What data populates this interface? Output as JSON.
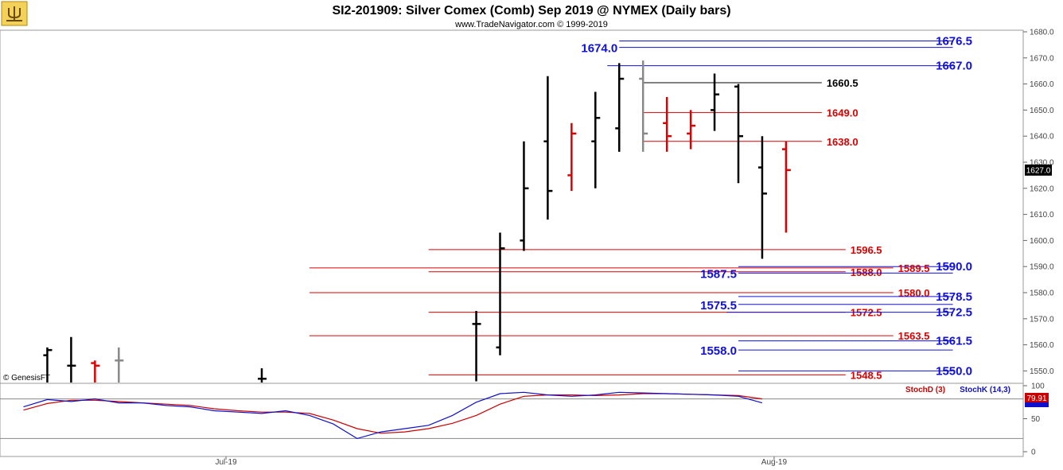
{
  "header": {
    "title": "SI2-201909:  Silver Comex (Comb) Sep 2019 @ NYMEX  (Daily bars)",
    "copyright": "www.TradeNavigator.com © 1999-2019",
    "genesis": "© GenesisFT",
    "logo_icon": "pitchfork-logo-icon"
  },
  "chart_data": {
    "type": "ohlc",
    "y_ticks": [
      "1680.0",
      "1670.0",
      "1660.0",
      "1650.0",
      "1640.0",
      "1630.0",
      "1620.0",
      "1610.0",
      "1600.0",
      "1590.0",
      "1580.0",
      "1570.0",
      "1560.0",
      "1550.0"
    ],
    "ylim": [
      1545,
      1683
    ],
    "last_price": "1627.0",
    "x_labels": [
      {
        "text": "Jul-19",
        "x_index": 8.5
      },
      {
        "text": "Aug-19",
        "x_index": 31.5
      }
    ],
    "bars": [
      {
        "i": 1,
        "open": 1556,
        "high": 1559,
        "low": 1545,
        "close": 1558,
        "color": "#000000"
      },
      {
        "i": 2,
        "open": 1552,
        "high": 1563,
        "low": 1545,
        "close": 1552,
        "color": "#000000"
      },
      {
        "i": 3,
        "open": 1553,
        "high": 1554,
        "low": 1545,
        "close": 1552,
        "color": "#dd0000"
      },
      {
        "i": 4,
        "open": 1554,
        "high": 1559,
        "low": 1545,
        "close": 1554,
        "color": "#888888"
      },
      {
        "i": 10,
        "open": 1547,
        "high": 1551,
        "low": 1545,
        "close": 1547,
        "color": "#000000"
      },
      {
        "i": 19,
        "open": 1568,
        "high": 1573,
        "low": 1546,
        "close": 1568,
        "color": "#000000"
      },
      {
        "i": 20,
        "open": 1559,
        "high": 1603,
        "low": 1556,
        "close": 1597,
        "color": "#000000"
      },
      {
        "i": 21,
        "open": 1600,
        "high": 1638,
        "low": 1596,
        "close": 1620,
        "color": "#000000"
      },
      {
        "i": 22,
        "open": 1638,
        "high": 1663,
        "low": 1608,
        "close": 1619,
        "color": "#000000"
      },
      {
        "i": 23,
        "open": 1625,
        "high": 1645,
        "low": 1619,
        "close": 1641,
        "color": "#dd0000"
      },
      {
        "i": 24,
        "open": 1638,
        "high": 1657,
        "low": 1620,
        "close": 1647,
        "color": "#000000"
      },
      {
        "i": 25,
        "open": 1643,
        "high": 1668,
        "low": 1634,
        "close": 1662,
        "color": "#000000"
      },
      {
        "i": 26,
        "open": 1662,
        "high": 1669,
        "low": 1634,
        "close": 1641,
        "color": "#888888"
      },
      {
        "i": 27,
        "open": 1645,
        "high": 1655,
        "low": 1634,
        "close": 1640,
        "color": "#dd0000"
      },
      {
        "i": 28,
        "open": 1641,
        "high": 1650,
        "low": 1635,
        "close": 1644,
        "color": "#dd0000"
      },
      {
        "i": 29,
        "open": 1650,
        "high": 1664,
        "low": 1642,
        "close": 1656,
        "color": "#000000"
      },
      {
        "i": 30,
        "open": 1659,
        "high": 1660,
        "low": 1622,
        "close": 1640,
        "color": "#000000"
      },
      {
        "i": 31,
        "open": 1628,
        "high": 1640,
        "low": 1593,
        "close": 1618,
        "color": "#000000"
      },
      {
        "i": 32,
        "open": 1635,
        "high": 1638,
        "low": 1603,
        "close": 1627,
        "color": "#dd0000"
      }
    ],
    "levels": [
      {
        "price": 1676.5,
        "label": "1676.5",
        "color": "#1010dd",
        "from_i": 25,
        "to_i": 39,
        "label_at": "right"
      },
      {
        "price": 1674.0,
        "label": "1674.0",
        "color": "#1010dd",
        "from_i": 25,
        "to_i": 39,
        "label_at": "left"
      },
      {
        "price": 1667.0,
        "label": "1667.0",
        "color": "#1010dd",
        "from_i": 24.5,
        "to_i": 39,
        "label_at": "right"
      },
      {
        "price": 1660.5,
        "label": "1660.5",
        "color": "#000000",
        "from_i": 26,
        "to_i": 33.5,
        "label_at": "end"
      },
      {
        "price": 1649.0,
        "label": "1649.0",
        "color": "#dd0000",
        "from_i": 26,
        "to_i": 33.5,
        "label_at": "end"
      },
      {
        "price": 1638.0,
        "label": "1638.0",
        "color": "#dd0000",
        "from_i": 26,
        "to_i": 33.5,
        "label_at": "end"
      },
      {
        "price": 1596.5,
        "label": "1596.5",
        "color": "#dd0000",
        "from_i": 17,
        "to_i": 34.5,
        "label_at": "end"
      },
      {
        "price": 1590.0,
        "label": "1590.0",
        "color": "#1010dd",
        "from_i": 30,
        "to_i": 39,
        "label_at": "right"
      },
      {
        "price": 1589.5,
        "label": "1589.5",
        "color": "#dd0000",
        "from_i": 12,
        "to_i": 36.5,
        "label_at": "end"
      },
      {
        "price": 1588.0,
        "label": "1588.0",
        "color": "#dd0000",
        "from_i": 17,
        "to_i": 34.5,
        "label_at": "end"
      },
      {
        "price": 1587.5,
        "label": "1587.5",
        "color": "#1010dd",
        "from_i": 30,
        "to_i": 39,
        "label_at": "left"
      },
      {
        "price": 1580.0,
        "label": "1580.0",
        "color": "#dd0000",
        "from_i": 12,
        "to_i": 36.5,
        "label_at": "end"
      },
      {
        "price": 1578.5,
        "label": "1578.5",
        "color": "#1010dd",
        "from_i": 30,
        "to_i": 39,
        "label_at": "right"
      },
      {
        "price": 1575.5,
        "label": "1575.5",
        "color": "#1010dd",
        "from_i": 30,
        "to_i": 39,
        "label_at": "left"
      },
      {
        "price": 1572.5,
        "label": "1572.5",
        "color": "#dd0000",
        "from_i": 17,
        "to_i": 34.5,
        "label_at": "end"
      },
      {
        "price": 1572.5,
        "label": "1572.5",
        "color": "#1010dd",
        "from_i": 29.5,
        "to_i": 39,
        "label_at": "right"
      },
      {
        "price": 1563.5,
        "label": "1563.5",
        "color": "#dd0000",
        "from_i": 12,
        "to_i": 36.5,
        "label_at": "end"
      },
      {
        "price": 1561.5,
        "label": "1561.5",
        "color": "#1010dd",
        "from_i": 30,
        "to_i": 39,
        "label_at": "right"
      },
      {
        "price": 1558.0,
        "label": "1558.0",
        "color": "#1010dd",
        "from_i": 30,
        "to_i": 39,
        "label_at": "left"
      },
      {
        "price": 1550.0,
        "label": "1550.0",
        "color": "#1010dd",
        "from_i": 30,
        "to_i": 39,
        "label_at": "right"
      },
      {
        "price": 1548.5,
        "label": "1548.5",
        "color": "#dd0000",
        "from_i": 17,
        "to_i": 34.5,
        "label_at": "end"
      }
    ],
    "stochastic": {
      "ylim": [
        0,
        100
      ],
      "y_ticks": [
        "100",
        "50",
        "0"
      ],
      "ref_levels": [
        80,
        20
      ],
      "stochD_label": "StochD (3)",
      "stochK_label": "StochK (14,3)",
      "stochD_value": "79.91",
      "stochK_color": "#1010cc",
      "stochD_color": "#cc0000",
      "k": [
        [
          0,
          68
        ],
        [
          1,
          79
        ],
        [
          2,
          76
        ],
        [
          3,
          80
        ],
        [
          4,
          74
        ],
        [
          5,
          74
        ],
        [
          6,
          70
        ],
        [
          7,
          68
        ],
        [
          8,
          62
        ],
        [
          9,
          60
        ],
        [
          10,
          58
        ],
        [
          11,
          62
        ],
        [
          12,
          55
        ],
        [
          13,
          42
        ],
        [
          14,
          20
        ],
        [
          15,
          30
        ],
        [
          16,
          35
        ],
        [
          17,
          40
        ],
        [
          18,
          55
        ],
        [
          19,
          75
        ],
        [
          20,
          88
        ],
        [
          21,
          90
        ],
        [
          22,
          86
        ],
        [
          23,
          84
        ],
        [
          24,
          86
        ],
        [
          25,
          90
        ],
        [
          26,
          89
        ],
        [
          27,
          88
        ],
        [
          28,
          87
        ],
        [
          29,
          86
        ],
        [
          30,
          84
        ],
        [
          31,
          74
        ]
      ],
      "d": [
        [
          0,
          63
        ],
        [
          1,
          73
        ],
        [
          2,
          78
        ],
        [
          3,
          78
        ],
        [
          4,
          76
        ],
        [
          5,
          74
        ],
        [
          6,
          72
        ],
        [
          7,
          70
        ],
        [
          8,
          65
        ],
        [
          9,
          62
        ],
        [
          10,
          60
        ],
        [
          11,
          60
        ],
        [
          12,
          58
        ],
        [
          13,
          48
        ],
        [
          14,
          35
        ],
        [
          15,
          28
        ],
        [
          16,
          30
        ],
        [
          17,
          35
        ],
        [
          18,
          43
        ],
        [
          19,
          55
        ],
        [
          20,
          72
        ],
        [
          21,
          84
        ],
        [
          22,
          86
        ],
        [
          23,
          86
        ],
        [
          24,
          85
        ],
        [
          25,
          86
        ],
        [
          26,
          88
        ],
        [
          27,
          88
        ],
        [
          28,
          87
        ],
        [
          29,
          86
        ],
        [
          30,
          85
        ],
        [
          31,
          80
        ]
      ]
    }
  }
}
